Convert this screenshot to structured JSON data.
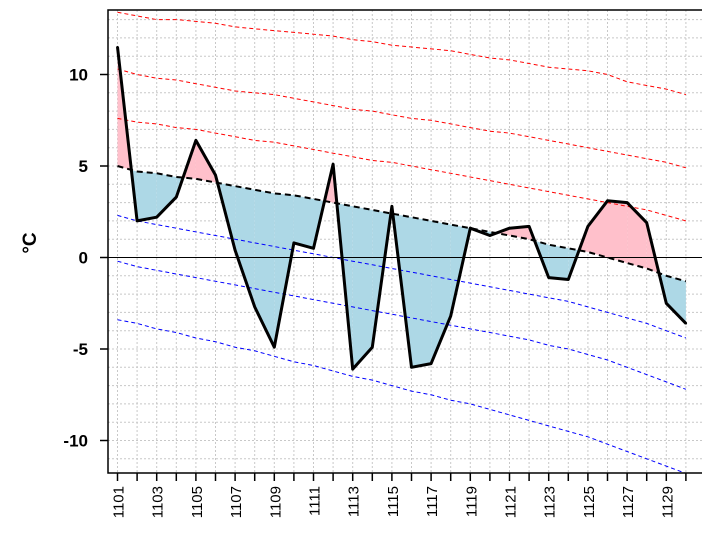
{
  "chart_data": {
    "type": "line",
    "title": "",
    "xlabel": "",
    "ylabel": "°C",
    "xlim": [
      1101,
      1130
    ],
    "ylim": [
      -12,
      13
    ],
    "x_tick_labels": [
      "1101",
      "1103",
      "1105",
      "1107",
      "1109",
      "1111",
      "1113",
      "1115",
      "1117",
      "1119",
      "1121",
      "1123",
      "1125",
      "1127",
      "1129"
    ],
    "y_tick_labels": [
      "10",
      "5",
      "0",
      "-5",
      "-10"
    ],
    "y_tick_values": [
      10,
      5,
      0,
      -5,
      -10
    ],
    "grid": true,
    "categories": [
      "1101",
      "1102",
      "1103",
      "1104",
      "1105",
      "1106",
      "1107",
      "1108",
      "1109",
      "1110",
      "1111",
      "1112",
      "1113",
      "1114",
      "1115",
      "1116",
      "1117",
      "1118",
      "1119",
      "1120",
      "1121",
      "1122",
      "1123",
      "1124",
      "1125",
      "1126",
      "1127",
      "1128",
      "1129",
      "1130"
    ],
    "series": [
      {
        "role": "observed",
        "values": [
          11.5,
          2.0,
          2.2,
          3.3,
          6.4,
          4.5,
          0.4,
          -2.7,
          -4.9,
          0.8,
          0.5,
          5.1,
          -6.1,
          -4.9,
          2.8,
          -6.0,
          -5.8,
          -3.2,
          1.6,
          1.2,
          1.6,
          1.7,
          -1.1,
          -1.2,
          1.7,
          3.1,
          3.0,
          1.9,
          -2.5,
          -3.6
        ],
        "color": "#000000"
      },
      {
        "role": "mean",
        "values": [
          5.0,
          4.7,
          4.6,
          4.4,
          4.3,
          4.1,
          3.9,
          3.7,
          3.5,
          3.4,
          3.2,
          3.0,
          2.8,
          2.6,
          2.4,
          2.2,
          2.0,
          1.8,
          1.6,
          1.4,
          1.2,
          1.0,
          0.7,
          0.5,
          0.3,
          0.0,
          -0.3,
          -0.6,
          -1.0,
          -1.3
        ],
        "color": "#000000"
      },
      {
        "role": "upper-1",
        "values": [
          7.6,
          7.4,
          7.3,
          7.1,
          7.0,
          6.8,
          6.6,
          6.4,
          6.3,
          6.1,
          5.9,
          5.7,
          5.5,
          5.3,
          5.2,
          5.0,
          4.8,
          4.6,
          4.4,
          4.2,
          4.0,
          3.8,
          3.6,
          3.4,
          3.2,
          3.0,
          2.8,
          2.6,
          2.3,
          2.0
        ],
        "color": "#ff0000"
      },
      {
        "role": "upper-2",
        "values": [
          10.3,
          10.0,
          9.8,
          9.7,
          9.5,
          9.3,
          9.1,
          9.0,
          8.9,
          8.7,
          8.5,
          8.3,
          8.1,
          8.0,
          7.8,
          7.6,
          7.5,
          7.3,
          7.1,
          6.9,
          6.8,
          6.6,
          6.4,
          6.2,
          6.0,
          5.8,
          5.6,
          5.4,
          5.2,
          4.9
        ],
        "color": "#ff0000"
      },
      {
        "role": "upper-3",
        "values": [
          13.4,
          13.2,
          13.0,
          13.0,
          12.9,
          12.8,
          12.6,
          12.5,
          12.4,
          12.3,
          12.2,
          12.1,
          11.9,
          11.8,
          11.6,
          11.5,
          11.4,
          11.3,
          11.1,
          10.9,
          10.8,
          10.6,
          10.4,
          10.3,
          10.2,
          10.0,
          9.6,
          9.4,
          9.2,
          8.9
        ],
        "color": "#ff0000"
      },
      {
        "role": "lower-1",
        "values": [
          2.3,
          2.0,
          1.8,
          1.6,
          1.4,
          1.2,
          1.0,
          0.8,
          0.6,
          0.4,
          0.2,
          0.0,
          -0.2,
          -0.4,
          -0.6,
          -0.8,
          -1.0,
          -1.2,
          -1.4,
          -1.6,
          -1.8,
          -2.0,
          -2.2,
          -2.4,
          -2.7,
          -3.0,
          -3.3,
          -3.6,
          -4.0,
          -4.4
        ],
        "color": "#0000ff"
      },
      {
        "role": "lower-2",
        "values": [
          -0.2,
          -0.5,
          -0.7,
          -0.9,
          -1.1,
          -1.3,
          -1.5,
          -1.7,
          -1.9,
          -2.1,
          -2.3,
          -2.5,
          -2.7,
          -2.9,
          -3.1,
          -3.3,
          -3.5,
          -3.7,
          -3.9,
          -4.1,
          -4.3,
          -4.5,
          -4.8,
          -5.0,
          -5.3,
          -5.6,
          -6.0,
          -6.4,
          -6.8,
          -7.2
        ],
        "color": "#0000ff"
      },
      {
        "role": "lower-3",
        "values": [
          -3.4,
          -3.6,
          -3.9,
          -4.1,
          -4.4,
          -4.6,
          -4.9,
          -5.1,
          -5.4,
          -5.7,
          -5.9,
          -6.2,
          -6.5,
          -6.7,
          -7.0,
          -7.3,
          -7.5,
          -7.8,
          -8.0,
          -8.3,
          -8.6,
          -8.9,
          -9.2,
          -9.5,
          -9.8,
          -10.2,
          -10.6,
          -11.0,
          -11.4,
          -11.8
        ],
        "color": "#0000ff"
      }
    ],
    "colors": {
      "above_fill": "#ffc0cb",
      "below_fill": "#add8e6",
      "grid": "#c8c8c8",
      "zero_line": "#000000"
    }
  }
}
